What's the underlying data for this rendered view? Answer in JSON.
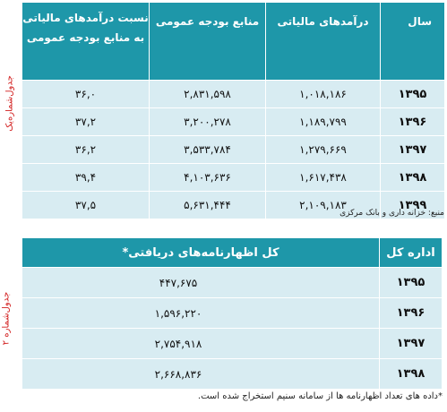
{
  "table1": {
    "headers": {
      "year": "سال",
      "income": "درآمدهای مالیاتی",
      "budget": "منابع بودجه عمومی",
      "ratio_line1": "نسبت درآمدهای مالیاتی",
      "ratio_line2": "به منابع بودجه عمومی"
    },
    "rows": [
      {
        "year": "۱۳۹۵",
        "income": "۱,۰۱۸,۱۸۶",
        "budget": "۲,۸۳۱,۵۹۸",
        "ratio": "۳۶,۰"
      },
      {
        "year": "۱۳۹۶",
        "income": "۱,۱۸۹,۷۹۹",
        "budget": "۳,۲۰۰,۲۷۸",
        "ratio": "۳۷,۲"
      },
      {
        "year": "۱۳۹۷",
        "income": "۱,۲۷۹,۶۶۹",
        "budget": "۳,۵۳۳,۷۸۴",
        "ratio": "۳۶,۲"
      },
      {
        "year": "۱۳۹۸",
        "income": "۱,۶۱۷,۴۳۸",
        "budget": "۴,۱۰۳,۶۳۶",
        "ratio": "۳۹,۴"
      },
      {
        "year": "۱۳۹۹",
        "income": "۲,۱۰۹,۱۸۳",
        "budget": "۵,۶۳۱,۴۴۴",
        "ratio": "۳۷,۵"
      }
    ],
    "side_label": "جدول‌شماره‌یک",
    "source": "منبع: خزانه داری و بانک مرکزی"
  },
  "table2": {
    "headers": {
      "office": "اداره کل",
      "total": "کل اظهارنامه‌های دریافتی*"
    },
    "rows": [
      {
        "year": "۱۳۹۵",
        "value": "۴۴۷,۶۷۵"
      },
      {
        "year": "۱۳۹۶",
        "value": "۱,۵۹۶,۲۲۰"
      },
      {
        "year": "۱۳۹۷",
        "value": "۲,۷۵۴,۹۱۸"
      },
      {
        "year": "۱۳۹۸",
        "value": "۲,۶۶۸,۸۳۶"
      }
    ],
    "side_label": "جدول‌شماره ۲",
    "note": "*داده های تعداد اظهارنامه ها از سامانه سنیم استخراج شده است."
  }
}
